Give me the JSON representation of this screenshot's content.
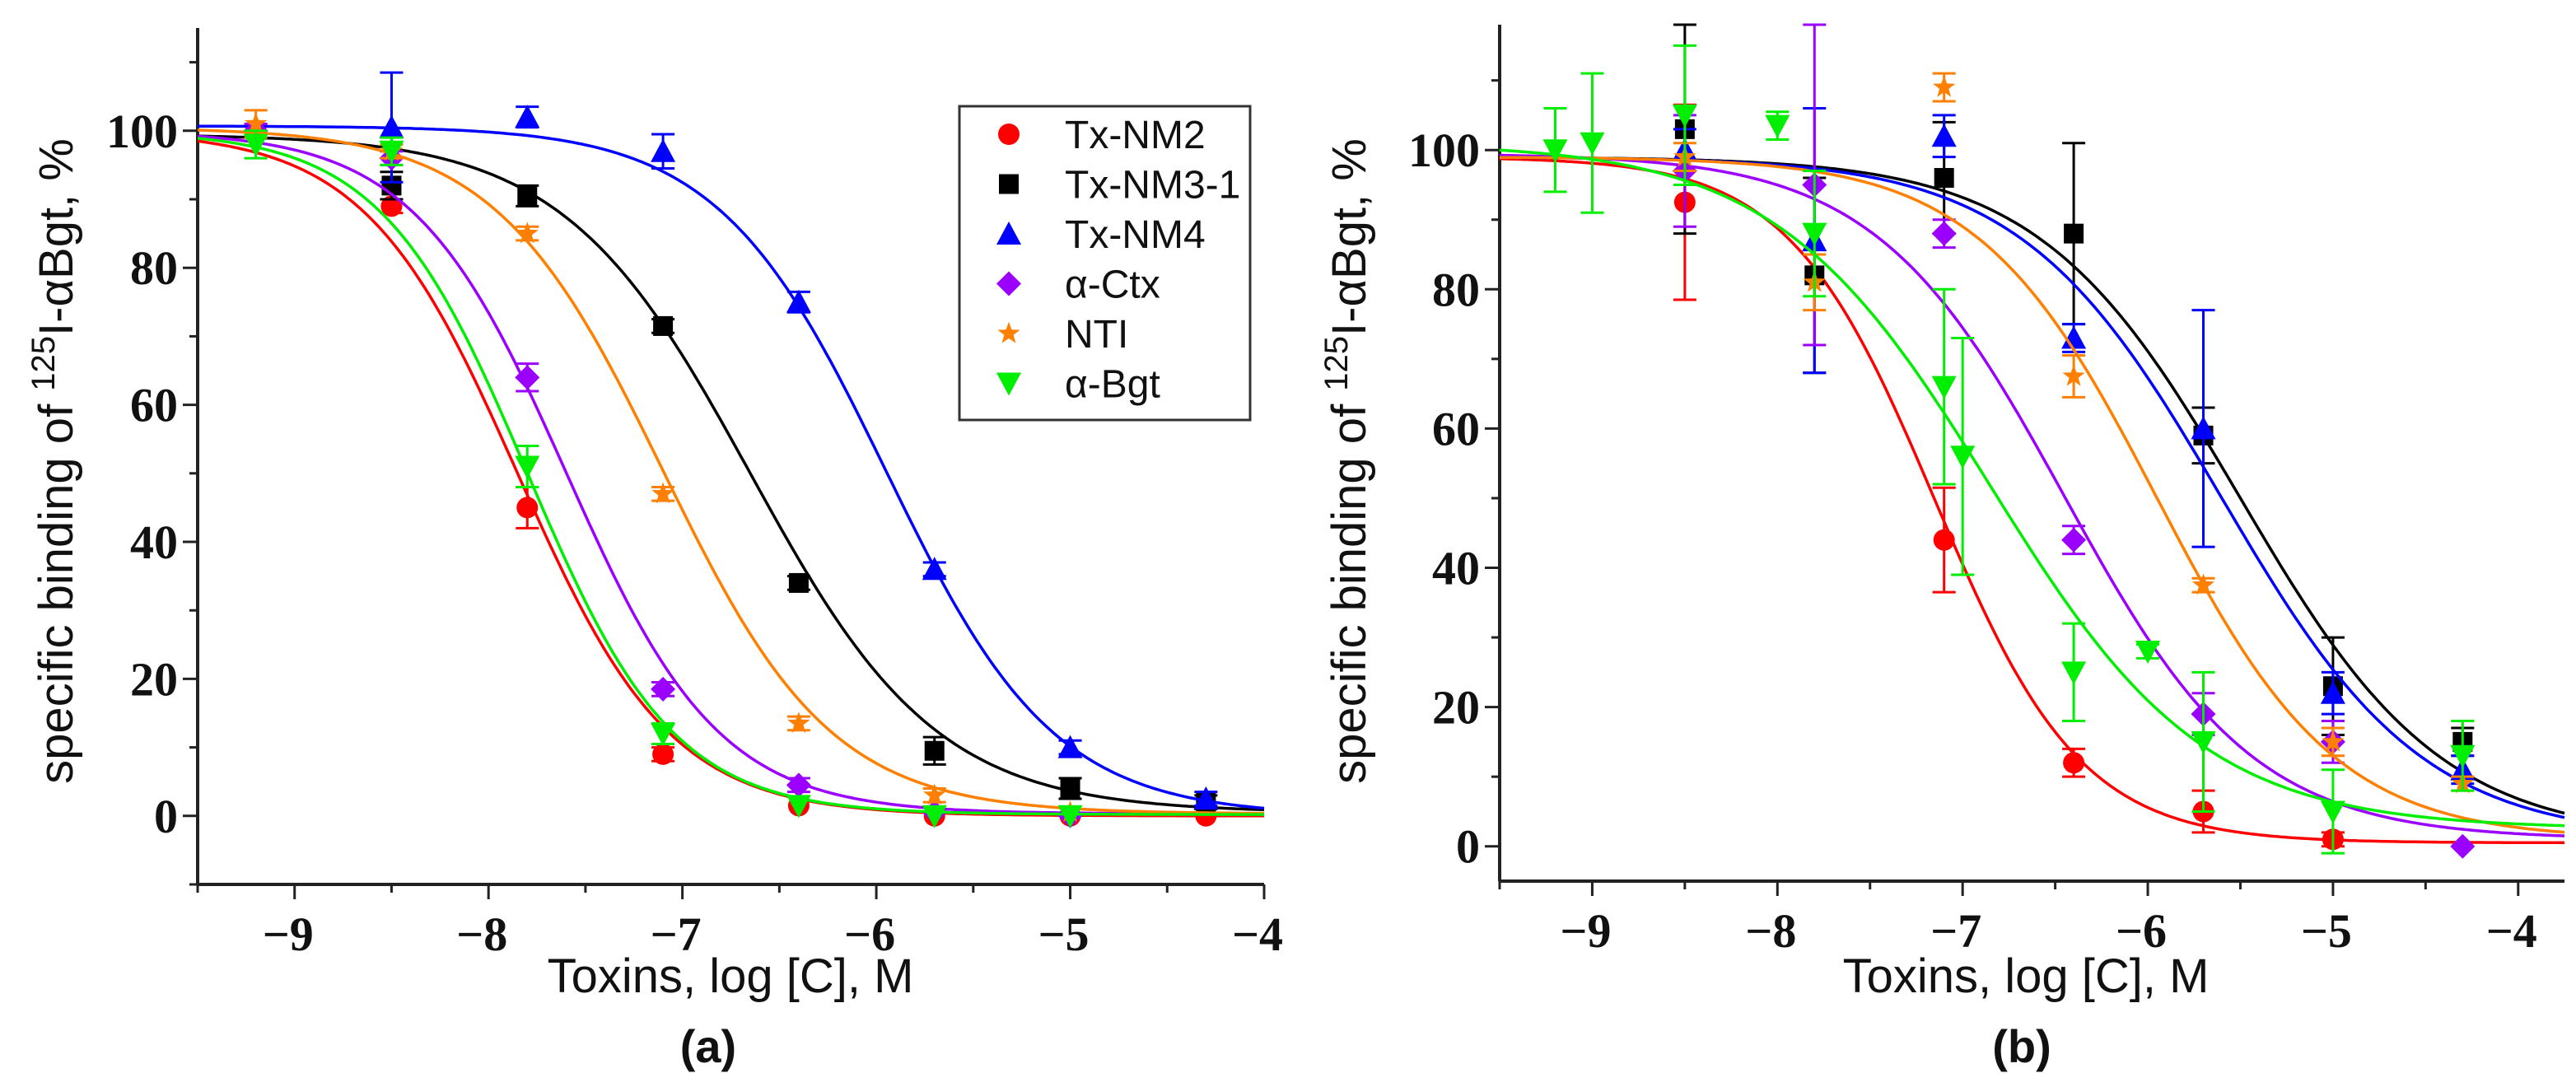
{
  "chart_data": [
    {
      "type": "scatter",
      "panel_label": "(a)",
      "xlabel": "Toxins, log [C], M",
      "ylabel_prefix": "specific binding of ",
      "ylabel_sup": "125",
      "ylabel_suffix": "I-αBgt, %",
      "xlim": [
        -9.5,
        -4
      ],
      "ylim": [
        -10,
        115
      ],
      "xticks": [
        -9,
        -8,
        -7,
        -6,
        -5,
        -4
      ],
      "xtick_labels": [
        "−9",
        "−8",
        "−7",
        "−6",
        "−5",
        "−4"
      ],
      "yticks": [
        0,
        20,
        40,
        60,
        80,
        100
      ],
      "ytick_labels": [
        "0",
        "20",
        "40",
        "60",
        "80",
        "100"
      ],
      "grid": false,
      "legend_placement": "top-right",
      "series": [
        {
          "name": "Tx-NM2",
          "color": "#ff0000",
          "marker": "circle",
          "fit": {
            "log_ic50": -7.85,
            "hill": 1.1,
            "top": 100,
            "bottom": 0
          },
          "points": [
            [
              -9.2,
              100,
              1
            ],
            [
              -8.5,
              89,
              1
            ],
            [
              -7.8,
              45,
              3
            ],
            [
              -7.1,
              9,
              1
            ],
            [
              -6.4,
              1.5,
              0.5
            ],
            [
              -5.7,
              0,
              0.5
            ],
            [
              -5,
              0,
              0.5
            ],
            [
              -4.3,
              0,
              0.5
            ]
          ]
        },
        {
          "name": "Tx-NM3-1",
          "color": "#000000",
          "marker": "square",
          "fit": {
            "log_ic50": -6.65,
            "hill": 0.9,
            "top": 99.5,
            "bottom": 0.5
          },
          "points": [
            [
              -8.5,
              92,
              2
            ],
            [
              -7.8,
              90.5,
              1.5
            ],
            [
              -7.1,
              71.5,
              1
            ],
            [
              -6.4,
              34,
              1
            ],
            [
              -5.7,
              9.5,
              2
            ],
            [
              -5,
              4,
              1.5
            ],
            [
              -4.3,
              2,
              1
            ]
          ]
        },
        {
          "name": "Tx-NM4",
          "color": "#0000ff",
          "marker": "triangle-up",
          "fit": {
            "log_ic50": -5.95,
            "hill": 1.0,
            "top": 100.7,
            "bottom": 0
          },
          "points": [
            [
              -8.5,
              100.5,
              8
            ],
            [
              -7.8,
              102,
              1.5
            ],
            [
              -7.1,
              97,
              2.5
            ],
            [
              -6.4,
              75,
              1.5
            ],
            [
              -5.7,
              36,
              1
            ],
            [
              -5,
              10,
              1
            ],
            [
              -4.3,
              2.5,
              1
            ]
          ]
        },
        {
          "name": "α-Ctx",
          "color": "#9b00ff",
          "marker": "diamond",
          "fit": {
            "log_ic50": -7.6,
            "hill": 1.1,
            "top": 100,
            "bottom": 0.3
          },
          "points": [
            [
              -9.2,
              100,
              1
            ],
            [
              -8.5,
              96,
              1
            ],
            [
              -7.8,
              64,
              2
            ],
            [
              -7.1,
              18.5,
              1
            ],
            [
              -6.4,
              4.5,
              1
            ],
            [
              -5.7,
              0.5,
              0.5
            ],
            [
              -5,
              0,
              0.5
            ]
          ]
        },
        {
          "name": "NTI",
          "color": "#ff7f00",
          "marker": "star",
          "fit": {
            "log_ic50": -7.1,
            "hill": 1.0,
            "top": 100.5,
            "bottom": 0.3
          },
          "points": [
            [
              -9.2,
              101,
              2
            ],
            [
              -8.5,
              97,
              1
            ],
            [
              -7.8,
              85,
              1
            ],
            [
              -7.1,
              47,
              1
            ],
            [
              -6.4,
              13.5,
              1
            ],
            [
              -5.7,
              3,
              1
            ],
            [
              -5,
              0.5,
              0.5
            ]
          ]
        },
        {
          "name": "α-Bgt",
          "color": "#00ee00",
          "marker": "triangle-down",
          "fit": {
            "log_ic50": -7.8,
            "hill": 1.15,
            "top": 100,
            "bottom": 0.2
          },
          "points": [
            [
              -9.2,
              98,
              2
            ],
            [
              -8.5,
              97,
              2
            ],
            [
              -7.8,
              51,
              3
            ],
            [
              -7.1,
              12,
              1.5
            ],
            [
              -6.4,
              1.5,
              0.5
            ],
            [
              -5.7,
              0,
              0.5
            ],
            [
              -5,
              0,
              0.5
            ]
          ]
        }
      ]
    },
    {
      "type": "scatter",
      "panel_label": "(b)",
      "xlabel": "Toxins, log [C], M",
      "ylabel_prefix": "specific binding of ",
      "ylabel_sup": "125",
      "ylabel_suffix": "I-αBgt, %",
      "xlim": [
        -9.5,
        -3.75
      ],
      "ylim": [
        -5,
        118
      ],
      "xticks": [
        -9,
        -8,
        -7,
        -6,
        -5,
        -4
      ],
      "xtick_labels": [
        "−9",
        "−8",
        "−7",
        "−6",
        "−5",
        "−4"
      ],
      "yticks": [
        0,
        20,
        40,
        60,
        80,
        100
      ],
      "ytick_labels": [
        "0",
        "20",
        "40",
        "60",
        "80",
        "100"
      ],
      "grid": false,
      "series": [
        {
          "name": "Tx-NM2",
          "color": "#ff0000",
          "marker": "circle",
          "fit": {
            "log_ic50": -7.15,
            "hill": 1.1,
            "top": 99,
            "bottom": 0.5
          },
          "points": [
            [
              -8.5,
              92.5,
              14
            ],
            [
              -7.1,
              44,
              7.5
            ],
            [
              -6.4,
              12,
              2
            ],
            [
              -5.7,
              5,
              3
            ],
            [
              -5,
              1,
              1
            ]
          ]
        },
        {
          "name": "Tx-NM3-1",
          "color": "#000000",
          "marker": "square",
          "fit": {
            "log_ic50": -5.5,
            "hill": 0.8,
            "top": 99,
            "bottom": 1
          },
          "points": [
            [
              -8.5,
              103,
              15
            ],
            [
              -7.8,
              82,
              14
            ],
            [
              -7.1,
              96,
              8
            ],
            [
              -6.4,
              88,
              13
            ],
            [
              -5.7,
              59,
              4
            ],
            [
              -5,
              23,
              7
            ],
            [
              -4.3,
              15,
              2
            ]
          ]
        },
        {
          "name": "Tx-NM4",
          "color": "#0000ff",
          "marker": "triangle-up",
          "fit": {
            "log_ic50": -5.6,
            "hill": 0.8,
            "top": 99,
            "bottom": 1
          },
          "points": [
            [
              -8.5,
              100,
              3
            ],
            [
              -7.8,
              87,
              19
            ],
            [
              -7.1,
              102,
              3
            ],
            [
              -6.4,
              73,
              2
            ],
            [
              -5.7,
              60,
              17
            ],
            [
              -5,
              22,
              3
            ],
            [
              -4.3,
              11,
              2
            ]
          ]
        },
        {
          "name": "α-Ctx",
          "color": "#9b00ff",
          "marker": "diamond",
          "fit": {
            "log_ic50": -6.45,
            "hill": 0.85,
            "top": 99.5,
            "bottom": 1
          },
          "points": [
            [
              -8.5,
              97,
              8
            ],
            [
              -7.8,
              95,
              23
            ],
            [
              -7.1,
              88,
              2
            ],
            [
              -6.4,
              44,
              2
            ],
            [
              -5.7,
              19,
              3
            ],
            [
              -5,
              15,
              3
            ],
            [
              -4.3,
              0,
              0.5
            ]
          ]
        },
        {
          "name": "NTI",
          "color": "#ff7f00",
          "marker": "star",
          "fit": {
            "log_ic50": -5.95,
            "hill": 0.9,
            "top": 99,
            "bottom": 1
          },
          "points": [
            [
              -8.5,
              99,
              2
            ],
            [
              -7.8,
              81,
              4
            ],
            [
              -7.1,
              109,
              2
            ],
            [
              -6.4,
              67.5,
              3
            ],
            [
              -5.7,
              37.5,
              1
            ],
            [
              -5,
              15,
              2
            ],
            [
              -4.3,
              9,
              1
            ]
          ]
        },
        {
          "name": "α-Bgt",
          "color": "#00ee00",
          "marker": "triangle-down",
          "fit": {
            "log_ic50": -6.85,
            "hill": 0.75,
            "top": 101,
            "bottom": 2.5
          },
          "points": [
            [
              -9.2,
              100,
              6
            ],
            [
              -9,
              101,
              10
            ],
            [
              -8.5,
              105,
              10
            ],
            [
              -8,
              103.5,
              2
            ],
            [
              -7.8,
              88,
              9
            ],
            [
              -7.1,
              66,
              14
            ],
            [
              -7,
              56,
              17
            ],
            [
              -6.4,
              25,
              7
            ],
            [
              -6,
              28,
              1
            ],
            [
              -5.7,
              15,
              10
            ],
            [
              -5,
              5,
              6
            ],
            [
              -4.3,
              13,
              5
            ]
          ]
        }
      ]
    }
  ]
}
